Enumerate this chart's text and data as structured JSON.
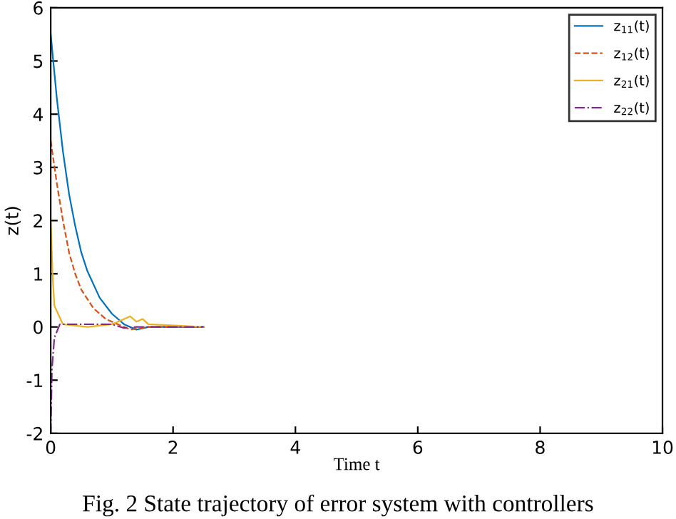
{
  "chart_data": {
    "type": "line",
    "xlabel": "Time t",
    "ylabel": "z(t)",
    "xlim": [
      0,
      10
    ],
    "ylim": [
      -2,
      6
    ],
    "xticks": [
      0,
      2,
      4,
      6,
      8,
      10
    ],
    "yticks": [
      -2,
      -1,
      0,
      1,
      2,
      3,
      4,
      5,
      6
    ],
    "grid": false,
    "legend": "top right",
    "annotations": [
      "Fig. 2 State trajectory of error system with controllers"
    ],
    "series": [
      {
        "name": "z$_{11}$(t)",
        "color": "#0072bd",
        "line_style": "solid",
        "x": [
          0,
          0.1,
          0.2,
          0.3,
          0.4,
          0.5,
          0.6,
          0.8,
          1.0,
          1.2,
          1.4,
          1.6,
          2.0,
          2.5
        ],
        "values": [
          5.5,
          4.3,
          3.3,
          2.5,
          1.9,
          1.4,
          1.05,
          0.55,
          0.25,
          0.05,
          -0.05,
          0,
          0,
          0
        ]
      },
      {
        "name": "z$_{12}$(t)",
        "color": "#d95319",
        "line_style": "dashed",
        "x": [
          0,
          0.1,
          0.2,
          0.3,
          0.4,
          0.5,
          0.7,
          0.9,
          1.1,
          1.3,
          1.6,
          2.5
        ],
        "values": [
          3.5,
          2.7,
          2.0,
          1.4,
          1.0,
          0.7,
          0.35,
          0.15,
          0.05,
          -0.05,
          0,
          0
        ]
      },
      {
        "name": "z$_{21}$(t)",
        "color": "#edb120",
        "line_style": "solid",
        "x": [
          0,
          0.03,
          0.06,
          0.1,
          0.2,
          0.6,
          1.0,
          1.2,
          1.3,
          1.4,
          1.5,
          1.6,
          2.5
        ],
        "values": [
          2,
          1.0,
          0.4,
          0.3,
          0.05,
          0,
          0.05,
          0.15,
          0.2,
          0.1,
          0.15,
          0.05,
          0
        ]
      },
      {
        "name": "z$_{22}$(t)",
        "color": "#7e2f8e",
        "line_style": "dashdot",
        "x": [
          0,
          0.02,
          0.06,
          0.15,
          0.4,
          1.0,
          1.2,
          1.4,
          2.5
        ],
        "values": [
          -2,
          -0.8,
          -0.2,
          0.05,
          0.05,
          0.05,
          -0.02,
          0,
          0
        ]
      }
    ]
  }
}
